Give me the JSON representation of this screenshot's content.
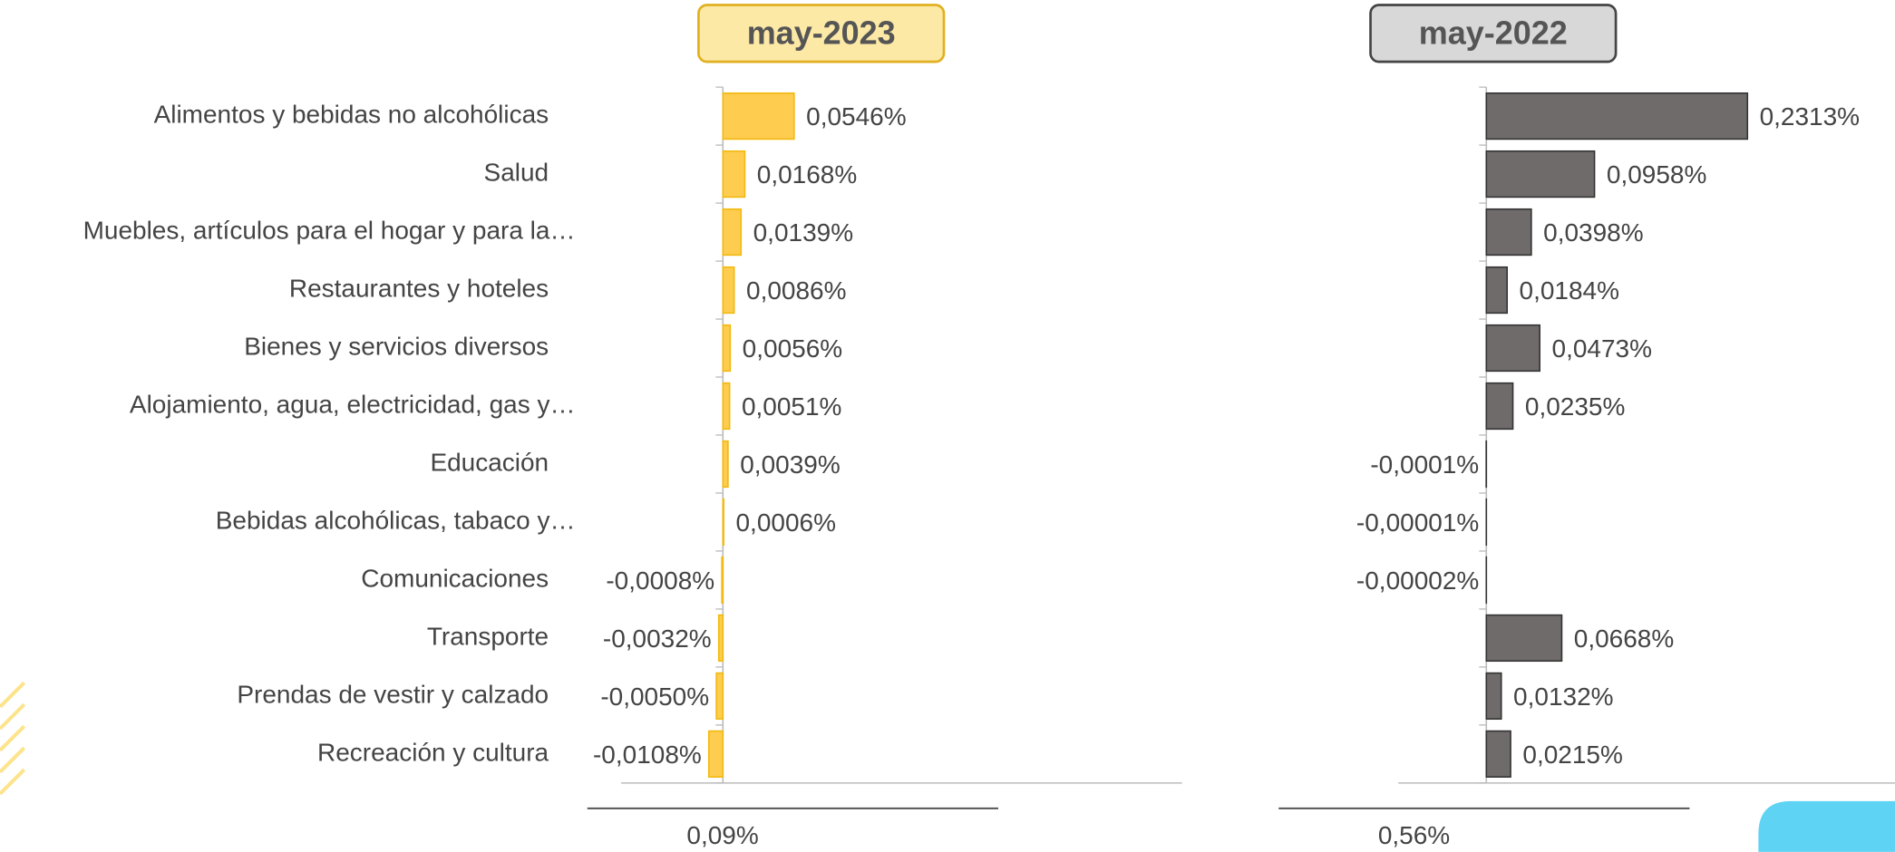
{
  "chart_data": [
    {
      "type": "bar",
      "orientation": "horizontal",
      "title": "may-2023",
      "categories": [
        "Alimentos y bebidas no alcohólicas",
        "Salud",
        "Muebles, artículos para el hogar y para la…",
        "Restaurantes y hoteles",
        "Bienes y servicios diversos",
        "Alojamiento, agua, electricidad, gas y…",
        "Educación",
        "Bebidas alcohólicas, tabaco y…",
        "Comunicaciones",
        "Transporte",
        "Prendas de vestir y calzado",
        "Recreación y cultura"
      ],
      "values": [
        0.0546,
        0.0168,
        0.0139,
        0.0086,
        0.0056,
        0.0051,
        0.0039,
        0.0006,
        -0.0008,
        -0.0032,
        -0.005,
        -0.0108
      ],
      "value_labels": [
        "0,0546%",
        "0,0168%",
        "0,0139%",
        "0,0086%",
        "0,0056%",
        "0,0051%",
        "0,0039%",
        "0,0006%",
        "-0,0008%",
        "-0,0032%",
        "-0,0050%",
        "-0,0108%"
      ],
      "color": "#fecc4f",
      "edge_color": "#f2b90f",
      "title_fill": "#fde9a6",
      "title_edge": "#e0b020",
      "xlim": [
        -0.078,
        0.352
      ],
      "footer": "0,09%"
    },
    {
      "type": "bar",
      "orientation": "horizontal",
      "title": "may-2022",
      "values": [
        0.2313,
        0.0958,
        0.0398,
        0.0184,
        0.0473,
        0.0235,
        -0.0001,
        -1e-05,
        -2e-05,
        0.0668,
        0.0132,
        0.0215
      ],
      "value_labels": [
        "0,2313%",
        "0,0958%",
        "0,0398%",
        "0,0184%",
        "0,0473%",
        "0,0235%",
        "-0,0001%",
        "-0,00001%",
        "-0,00002%",
        "0,0668%",
        "0,0132%",
        "0,0215%"
      ],
      "color": "#706b6b",
      "edge_color": "#333333",
      "title_fill": "#d9d8d8",
      "title_edge": "#444444",
      "xlim": [
        -0.078,
        0.362
      ],
      "footer": "0,56%"
    }
  ]
}
